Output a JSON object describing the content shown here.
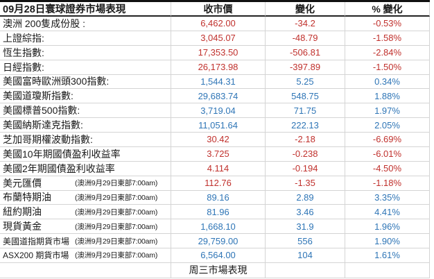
{
  "table": {
    "title": "09月28日寰球證券市場表現",
    "columns": [
      "收市價",
      "變化",
      "% 變化"
    ],
    "footer": "周三市場表現",
    "rows": [
      {
        "label": "澳洲 200隻成份股 :",
        "note": "",
        "close": "6,462.00",
        "change": "-34.2",
        "pct": "-0.53%",
        "trend": "down",
        "small": false
      },
      {
        "label": "上證綜指:",
        "note": "",
        "close": "3,045.07",
        "change": "-48.79",
        "pct": "-1.58%",
        "trend": "down",
        "small": false
      },
      {
        "label": "恆生指數:",
        "note": "",
        "close": "17,353.50",
        "change": "-506.81",
        "pct": "-2.84%",
        "trend": "down",
        "small": false
      },
      {
        "label": "日經指數:",
        "note": "",
        "close": "26,173.98",
        "change": "-397.89",
        "pct": "-1.50%",
        "trend": "down",
        "small": false
      },
      {
        "label": "美國富時歐洲頭300指數:",
        "note": "",
        "close": "1,544.31",
        "change": "5.25",
        "pct": "0.34%",
        "trend": "up",
        "small": false
      },
      {
        "label": "美國道瓊斯指數:",
        "note": "",
        "close": "29,683.74",
        "change": "548.75",
        "pct": "1.88%",
        "trend": "up",
        "small": false
      },
      {
        "label": "美國標普500指數:",
        "note": "",
        "close": "3,719.04",
        "change": "71.75",
        "pct": "1.97%",
        "trend": "up",
        "small": false
      },
      {
        "label": "美國納斯達克指數:",
        "note": "",
        "close": "11,051.64",
        "change": "222.13",
        "pct": "2.05%",
        "trend": "up",
        "small": false
      },
      {
        "label": "芝加哥期權波動指數:",
        "note": "",
        "close": "30.42",
        "change": "-2.18",
        "pct": "-6.69%",
        "trend": "down",
        "small": false
      },
      {
        "label": "美國10年期國債盈利收益率",
        "note": "",
        "close": "3.725",
        "change": "-0.238",
        "pct": "-6.01%",
        "trend": "down",
        "small": false
      },
      {
        "label": "美國2年期國債盈利收益率",
        "note": "",
        "close": "4.114",
        "change": "-0.194",
        "pct": "-4.50%",
        "trend": "down",
        "small": false
      },
      {
        "label": "美元匯價",
        "note": "(澳洲9月29日東部7:00am)",
        "close": "112.76",
        "change": "-1.35",
        "pct": "-1.18%",
        "trend": "down",
        "small": false
      },
      {
        "label": "布蘭特期油",
        "note": "(澳洲9月29日東部7:00am)",
        "close": "89.16",
        "change": "2.89",
        "pct": "3.35%",
        "trend": "up",
        "small": false
      },
      {
        "label": "紐約期油",
        "note": "(澳洲9月29日東部7:00am)",
        "close": "81.96",
        "change": "3.46",
        "pct": "4.41%",
        "trend": "up",
        "small": false
      },
      {
        "label": "現貨黃金",
        "note": "(澳洲9月29日東部7:00am)",
        "close": "1,668.10",
        "change": "31.9",
        "pct": "1.96%",
        "trend": "up",
        "small": false
      },
      {
        "label": "美國道指期貨市場",
        "note": "(澳洲9月29日東部7:00am)",
        "close": "29,759.00",
        "change": "556",
        "pct": "1.90%",
        "trend": "up",
        "small": true
      },
      {
        "label": "ASX200 期貨市場",
        "note": "(澳洲9月29日東部7:00am)",
        "close": "6,564.00",
        "change": "104",
        "pct": "1.61%",
        "trend": "up",
        "small": true
      }
    ]
  },
  "colors": {
    "down": "#c0302c",
    "up": "#2e75b6"
  }
}
